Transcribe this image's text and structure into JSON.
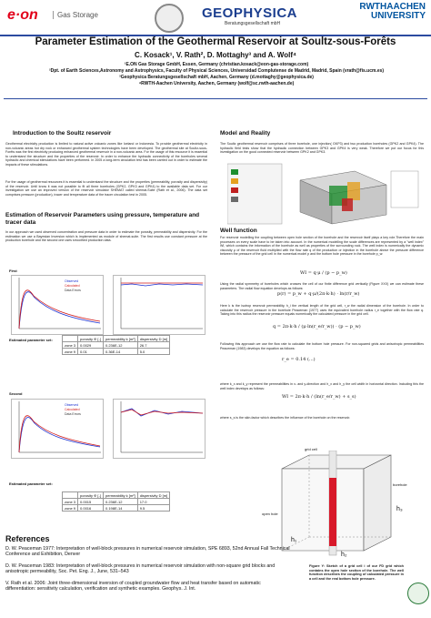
{
  "header": {
    "eon_logo": "e·on",
    "eon_sub": "Gas Storage",
    "geo_logo": "GEOPHYSICA",
    "geo_sub": "Beratungsgesellschaft mbH",
    "rwth_logo": "RWTHAACHEN UNIVERSITY"
  },
  "title": "Parameter Estimation of the Geothermal Reservoir at Soultz-sous-Forêts",
  "authors": "C. Kosack¹, V. Rath², D. Mottaghy³ and A. Wolf⁴",
  "affiliations": [
    "¹E.ON Gas Storage GmbH, Essen, Germany (christian.kosack@eon-gas-storage.com)",
    "²Dpt. of Earth Sciences,Astronomy and Astrophysics, Faculty of Physical Sciences, Universidad Complutense de Madrid, Madrid, Spain (vrath@fis.ucm.es)",
    "³Geophysica Beratungsgesellschaft mbH, Aachen, Germany (d.mottaghy@geophysica.de)",
    "⁴RWTH-Aachen University, Aachen, Germany (wolf@sc.rwth-aachen.de)"
  ],
  "intro": {
    "heading": "Introduction to the Soultz reservoir",
    "p1": "Geothermal electricity production is limited to natural active volcanic zones like Iceland or Indonesia. To provide geothermal electricity in non-volcanic areas hot dry rock or enhanced geothermal system technologies have been developed. The geothermal site at Soultz-sous-Forêts was the first electricity producing enhanced geothermal reservoir in a non-volcanic area. For the usage of this resource it is essential to understand the structure and the properties of the reservoir. In order to enhance the hydraulic connectivity of the boreholes several hydraulic and chemical stimulations have been performed. In 2005 a long-term circulation test has been carried out in order to estimate the impacts of these stimulations.",
    "p2": "For the usage of geothermal resources it is essential to understand the structure and the properties (permeability, porosity and dispersivity) of the reservoir. Until know it was not possible to fit all three boreholes (GPK2, GPK3 and GPK4) to the available data set. For our investigation we use an improved version of the reservoir simulator SHEMAT called shemat-Suite (Rath et al., 2006). The data set comprises pressure (production), tracer and temperature data of the tracer circulation test in 2005."
  },
  "estimation": {
    "heading": "Estimation of Reservoir Parameters using pressure, temperature and tracer data",
    "p1": "In our approach we used observed concentration and pressure data in order to estimate the porosity, permeability and dispersivity. For the estimation we use a Bayesian Inversion which is implemented as module of shemat-suite. The first results use constant pressure at the production borehole and the second one uses smoothed production data."
  },
  "first": {
    "label": "First",
    "table_label": "Estimated parameter set:",
    "headers": [
      "",
      "porosity Φ [-]",
      "permeability k [m²]",
      "dispersivity D [m]"
    ],
    "rows": [
      [
        "zone 3",
        "0.0029",
        "0.236E-12",
        "26.7"
      ],
      [
        "zone 9",
        "0.01",
        "0.36E-14",
        "5.0"
      ]
    ]
  },
  "second": {
    "label": "Second",
    "table_label": "Estimated parameter set:",
    "headers": [
      "",
      "porosity Φ [-]",
      "permeability k [m²]",
      "dispersivity D [m]"
    ],
    "rows": [
      [
        "zone 3",
        "0.0015",
        "0.236E-12",
        "17.0"
      ],
      [
        "zone 9",
        "0.0016",
        "0.198E-14",
        "9.5"
      ]
    ]
  },
  "legend": {
    "observed": "Observed",
    "calculated": "Calculated",
    "errors": "Data Errors"
  },
  "model": {
    "heading": "Model and Reality",
    "p1": "The Soultz geothermal reservoir comprises of three borehole, one injection( GKP3) and two production boreholes (GPK2 and GPK4). The hydraulic field tests show that the hydraulic connection between GPK3 and GPK4 is very weak. Therefore we put our focus for this investigation on the good connected reservoir between GPK2 and GPK3."
  },
  "wellfn": {
    "heading": "Well function",
    "p1": "For reservoir modelling the coupling between open hole section of the borehole and the reservoir itself plays a key role.Therefore the main processes on every scale have to be taken into account. In the numerical modelling the scale differences are represented by a \"well index\" WI, which contains the information of the borehole as well as properties of the surrounding rock. The well index is numerically the dynamic viscosity μ of the reservoir fluid multiplied with the flow rate q of the production or injection in the borehole above the pressure difference between the pressure of the grid cell in the numerical model p and the bottom hole pressure in the borehole p_w:",
    "p2": "Using the radial symmetry of boreholes which crosses the cell of our finite difference grid vertically (Figure XXX) we can estimate these parameters. The radial flow equation develops as follows:",
    "p3": "Here k is the isotrop reservoir permeability, h_i the vertical length of the grid cell, r_w the radial dimension of the borehole. In order to calculate the reservoir pressure in the borehole Peaceman (1977) uses the equivalent borehole radius r_e together with the flow rate q. Taking into this radius the reservoir pressure equals numerically the calculated pressure in the grid cell.",
    "p4": "Following this approach we use the flow rate to calculate the bottom hole pressure. For non-squared grids and anisotropic permeabilities Peaceman (1983) develops the equation as follows:",
    "p5": "where k_x and k_y represent the permeabilities in x- and y-direction and h_x and h_y the cell width in horizontal direction. Including this the well index develops as follows:",
    "p6": "where s_s is the skin-factor which describes the influence of the borehole on the reservoir.",
    "eq1": "WI = q·μ / (p − p_w)",
    "eq2": "p(r) = p_w + q·μ/(2π·k·h) · ln(r/r_w)",
    "eq3": "q = 2π·k·h / (μ·ln(r_e/r_w)) · (p − p_w)",
    "eq4": "r_e = 0.14 (...)",
    "eq5": "WI = 2π·k·h / (ln(r_e/r_w) + s_s)"
  },
  "figure": {
    "grid_cell": "grid cell",
    "borehole": "borehole",
    "open_hole": "open hole",
    "h1": "h₁",
    "h2": "h₂",
    "h3": "h₃",
    "caption": "Figure Y: Sketch of a grid cell i of our FD grid which contains the open hole section of the borehole. The well function describes the coupling of calculated pressure in a cell and the real bottom hole pressure."
  },
  "references": {
    "heading": "References",
    "items": [
      "D. W. Peaceman 1977: Interpretation of well-block pressures in numerical reservoir simulation, SPE 6893, 52nd Annual Fall Technical Conference and Exhibition, Denver",
      "D. W. Peaceman 1983: Interpretation of well-block pressures in numerical reservoir simulation with non-square grid blocks and anisotropic permeability, Soc. Pet. Eng. J., June, 531–543",
      "V. Rath et al. 2006: Joint three-dimensional inversion of coupled groundwater flow and heat transfer based on automatic differentiation: sensitivity calculation, verification and synthetic examples. Geophys. J. Int."
    ]
  },
  "colors": {
    "accent": "#2b4aa0",
    "eon": "#e2001a",
    "observed": "#1a2fd0",
    "calculated": "#d01a1a"
  }
}
